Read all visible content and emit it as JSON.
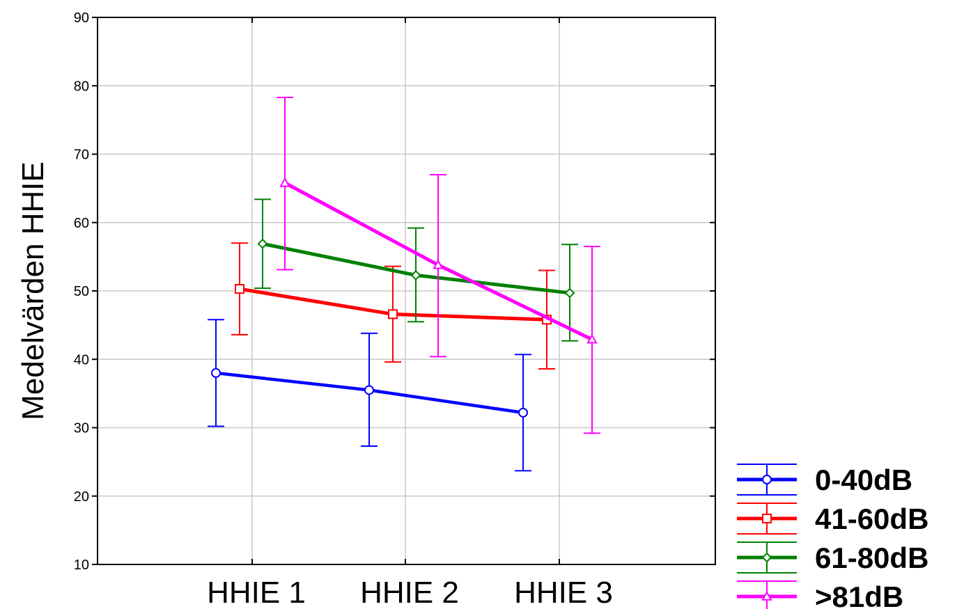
{
  "chart_data": {
    "type": "line",
    "title": "",
    "xlabel": "",
    "ylabel": "Medelvärden HHIE",
    "categories": [
      "HHIE 1",
      "HHIE 2",
      "HHIE 3"
    ],
    "ylim": [
      10,
      90
    ],
    "yticks": [
      10,
      20,
      30,
      40,
      50,
      60,
      70,
      80,
      90
    ],
    "grid": true,
    "legend_position": "bottom-right",
    "series": [
      {
        "name": "0-40dB",
        "color": "#0000ff",
        "marker": "circle",
        "values": [
          38.0,
          35.5,
          32.2
        ],
        "err_low": [
          30.2,
          27.3,
          23.7
        ],
        "err_high": [
          45.8,
          43.8,
          40.7
        ]
      },
      {
        "name": "41-60dB",
        "color": "#ff0000",
        "marker": "square",
        "values": [
          50.3,
          46.6,
          45.8
        ],
        "err_low": [
          43.6,
          39.6,
          38.6
        ],
        "err_high": [
          57.0,
          53.6,
          53.0
        ]
      },
      {
        "name": "61-80dB",
        "color": "#008000",
        "marker": "diamond",
        "values": [
          56.9,
          52.3,
          49.7
        ],
        "err_low": [
          50.4,
          45.5,
          42.7
        ],
        "err_high": [
          63.4,
          59.2,
          56.8
        ]
      },
      {
        "name": ">81dB",
        "color": "#ff00ff",
        "marker": "triangle",
        "values": [
          65.8,
          53.8,
          42.9
        ],
        "err_low": [
          53.1,
          40.4,
          29.2
        ],
        "err_high": [
          78.3,
          67.0,
          56.5
        ]
      }
    ]
  }
}
